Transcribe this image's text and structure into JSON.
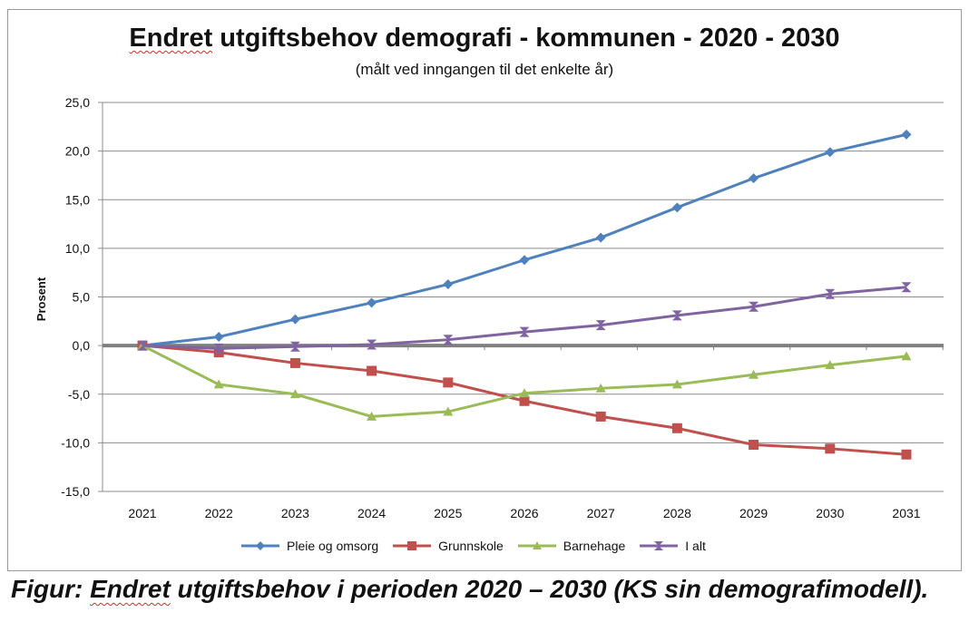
{
  "chart_data": {
    "type": "line",
    "title_word1": "Endret",
    "title_rest": " utgiftsbehov demografi - kommunen - 2020 - 2030",
    "subtitle": "(målt ved inngangen til det enkelte år)",
    "ylabel": "Prosent",
    "xlabel": "",
    "ylim": [
      -15,
      25
    ],
    "yticks": [
      25,
      20,
      15,
      10,
      5,
      0,
      -5,
      -10,
      -15
    ],
    "ytick_labels": [
      "25,0",
      "20,0",
      "15,0",
      "10,0",
      "5,0",
      "0,0",
      "-5,0",
      "-10,0",
      "-15,0"
    ],
    "categories": [
      "2021",
      "2022",
      "2023",
      "2024",
      "2025",
      "2026",
      "2027",
      "2028",
      "2029",
      "2030",
      "2031"
    ],
    "grid": true,
    "legend_position": "bottom",
    "series": [
      {
        "name": "Pleie og omsorg",
        "color": "#4f81bd",
        "marker": "diamond",
        "values": [
          0,
          0.9,
          2.7,
          4.4,
          6.3,
          8.8,
          11.1,
          14.2,
          17.2,
          19.9,
          21.7
        ]
      },
      {
        "name": "Grunnskole",
        "color": "#c0504d",
        "marker": "square",
        "values": [
          0,
          -0.7,
          -1.8,
          -2.6,
          -3.8,
          -5.7,
          -7.3,
          -8.5,
          -10.2,
          -10.6,
          -11.2
        ]
      },
      {
        "name": "Barnehage",
        "color": "#9bbb59",
        "marker": "triangle",
        "values": [
          0,
          -4.0,
          -5.0,
          -7.3,
          -6.8,
          -4.9,
          -4.4,
          -4.0,
          -3.0,
          -2.0,
          -1.1
        ]
      },
      {
        "name": "I alt",
        "color": "#8064a2",
        "marker": "hourglass",
        "values": [
          0,
          -0.3,
          -0.1,
          0.1,
          0.6,
          1.4,
          2.1,
          3.1,
          4.0,
          5.3,
          6.0
        ]
      }
    ]
  },
  "caption": {
    "prefix": "Figur: ",
    "word1": "Endret",
    "rest": " utgiftsbehov i perioden 2020 – 2030 (KS sin demografimodell)."
  }
}
